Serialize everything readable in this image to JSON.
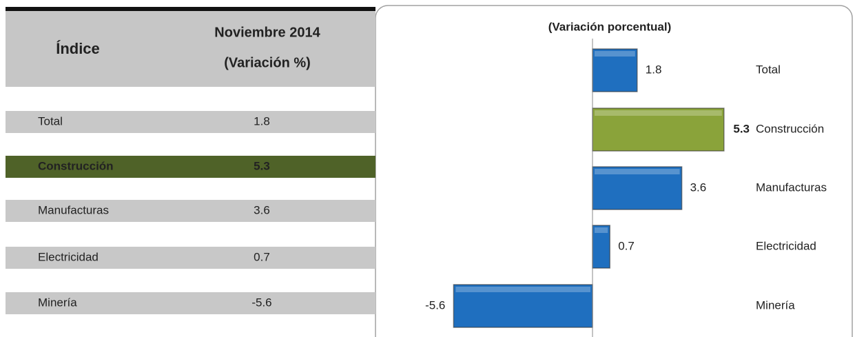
{
  "table": {
    "header": [
      "Índice",
      [
        "Noviembre 2014",
        "(Variación %)"
      ]
    ],
    "rows": [
      [
        "Total",
        1.8
      ],
      [
        "Construcción",
        5.3
      ],
      [
        "Manufacturas",
        3.6
      ],
      [
        "Electricidad",
        0.7
      ],
      [
        "Minería",
        -5.6
      ]
    ],
    "highlight_index": 1
  },
  "chart_data": {
    "type": "hbar",
    "title": "(Variación porcentual)",
    "categories": [
      "Total",
      "Construcción",
      "Manufacturas",
      "Electricidad",
      "Minería"
    ],
    "values": [
      1.8,
      5.3,
      3.6,
      0.7,
      -5.6
    ],
    "colors": [
      "#1f6fbf",
      "#8aa33a",
      "#1f6fbf",
      "#1f6fbf",
      "#1f6fbf"
    ],
    "highlight_index": 1,
    "xlim": [
      -6,
      10
    ]
  }
}
